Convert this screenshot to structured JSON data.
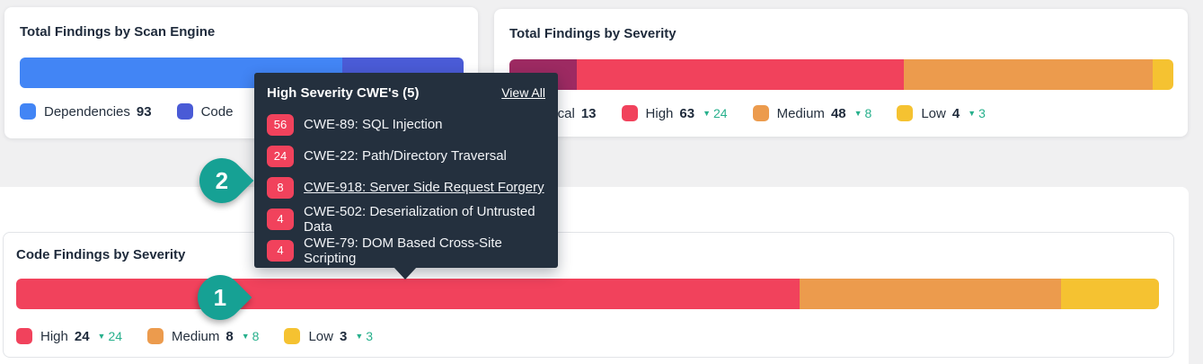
{
  "colors": {
    "blue": "#4285F5",
    "indigo": "#4A5BD6",
    "maroon": "#9D2A62",
    "red": "#F1425C",
    "orange": "#EC9B4D",
    "yellow": "#F5C231",
    "teal_marker": "#16A194",
    "teal_delta": "#27B08C",
    "tooltip_bg": "#24303E"
  },
  "icons": {
    "decrease_triangle": "▼"
  },
  "charts": {
    "scan_engine": {
      "title": "Total Findings by Scan Engine",
      "type": "stacked_bar",
      "segments": [
        {
          "label": "Dependencies",
          "value": 93,
          "fraction": 0.727,
          "color": "#4285F5"
        },
        {
          "label": "Code",
          "value": null,
          "fraction": 0.273,
          "color": "#4A5BD6"
        }
      ],
      "legend": [
        {
          "label": "Dependencies",
          "value": "93",
          "color": "#4285F5"
        },
        {
          "label": "Code",
          "value": "",
          "color": "#4A5BD6"
        }
      ]
    },
    "severity": {
      "title": "Total Findings by Severity",
      "type": "stacked_bar",
      "segments": [
        {
          "label": "Critical",
          "value": 13,
          "fraction": 0.102,
          "color": "#9D2A62"
        },
        {
          "label": "High",
          "value": 63,
          "fraction": 0.492,
          "color": "#F1425C"
        },
        {
          "label": "Medium",
          "value": 48,
          "fraction": 0.375,
          "color": "#EC9B4D"
        },
        {
          "label": "Low",
          "value": 4,
          "fraction": 0.031,
          "color": "#F5C231"
        }
      ],
      "legend": [
        {
          "label": "Critical",
          "value": "13",
          "color": "#9D2A62"
        },
        {
          "label": "High",
          "value": "63",
          "delta": "24",
          "color": "#F1425C"
        },
        {
          "label": "Medium",
          "value": "48",
          "delta": "8",
          "color": "#EC9B4D"
        },
        {
          "label": "Low",
          "value": "4",
          "delta": "3",
          "color": "#F5C231"
        }
      ]
    },
    "code_severity": {
      "title": "Code Findings by Severity",
      "type": "stacked_bar",
      "segments": [
        {
          "label": "High",
          "value": 24,
          "fraction": 0.686,
          "color": "#F1425C"
        },
        {
          "label": "Medium",
          "value": 8,
          "fraction": 0.229,
          "color": "#EC9B4D"
        },
        {
          "label": "Low",
          "value": 3,
          "fraction": 0.086,
          "color": "#F5C231"
        }
      ],
      "legend": [
        {
          "label": "High",
          "value": "24",
          "delta": "24",
          "color": "#F1425C"
        },
        {
          "label": "Medium",
          "value": "8",
          "delta": "8",
          "color": "#EC9B4D"
        },
        {
          "label": "Low",
          "value": "3",
          "delta": "3",
          "color": "#F5C231"
        }
      ]
    }
  },
  "tooltip": {
    "title": "High Severity CWE's (5)",
    "view_all_label": "View All",
    "items": [
      {
        "count": "56",
        "label": "CWE-89: SQL Injection",
        "hovered": false
      },
      {
        "count": "24",
        "label": "CWE-22: Path/Directory Traversal",
        "hovered": false
      },
      {
        "count": "8",
        "label": "CWE-918: Server Side Request Forgery",
        "hovered": true
      },
      {
        "count": "4",
        "label": "CWE-502: Deserialization of Untrusted Data",
        "hovered": false
      },
      {
        "count": "4",
        "label": "CWE-79: DOM Based Cross-Site Scripting",
        "hovered": false
      }
    ]
  },
  "markers": [
    {
      "label": "1"
    },
    {
      "label": "2"
    }
  ]
}
